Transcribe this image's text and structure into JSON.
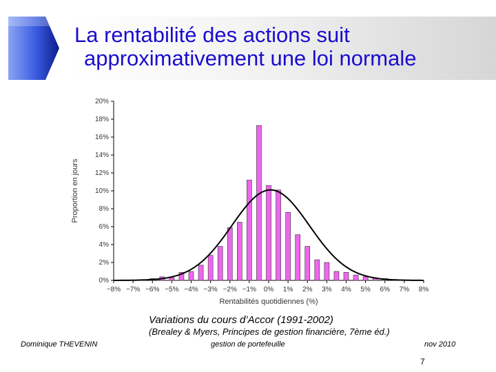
{
  "slide": {
    "title_line1": "La rentabilité des actions suit",
    "title_line2": "approximativement une loi normale",
    "caption": "Variations du cours d’Accor (1991-2002)",
    "source": "(Brealey & Myers, Principes de gestion financière, 7ème éd.)",
    "footer_author": "Dominique THEVENIN",
    "footer_center": "gestion de portefeuille",
    "footer_date": "nov 2010",
    "page_number": "7",
    "title_color": "#1a0dcc",
    "arrow_icon": "blue-chevron-arrow-icon"
  },
  "chart_data": {
    "type": "bar",
    "xlabel": "Rentabilités quotidiennes (%)",
    "ylabel": "Proportion en jours",
    "x_ticks": [
      "−8%",
      "−7%",
      "−6%",
      "−5%",
      "−4%",
      "−3%",
      "−2%",
      "−1%",
      "0%",
      "1%",
      "2%",
      "3%",
      "4%",
      "5%",
      "6%",
      "7%",
      "8%"
    ],
    "y_ticks": [
      "0%",
      "2%",
      "4%",
      "6%",
      "8%",
      "10%",
      "12%",
      "14%",
      "16%",
      "18%",
      "20%"
    ],
    "xlim": [
      -8,
      8
    ],
    "ylim": [
      0,
      20
    ],
    "bar_color": "#ee66ee",
    "bars": [
      {
        "x": -6.5,
        "y": 0.1
      },
      {
        "x": -6.0,
        "y": 0.2
      },
      {
        "x": -5.5,
        "y": 0.4
      },
      {
        "x": -5.0,
        "y": 0.3
      },
      {
        "x": -4.5,
        "y": 0.9
      },
      {
        "x": -4.0,
        "y": 1.0
      },
      {
        "x": -3.5,
        "y": 1.7
      },
      {
        "x": -3.0,
        "y": 2.8
      },
      {
        "x": -2.5,
        "y": 3.8
      },
      {
        "x": -2.0,
        "y": 5.9
      },
      {
        "x": -1.5,
        "y": 6.5
      },
      {
        "x": -1.0,
        "y": 11.2
      },
      {
        "x": -0.5,
        "y": 17.3
      },
      {
        "x": 0.0,
        "y": 10.6
      },
      {
        "x": 0.5,
        "y": 10.1
      },
      {
        "x": 1.0,
        "y": 7.6
      },
      {
        "x": 1.5,
        "y": 5.1
      },
      {
        "x": 2.0,
        "y": 3.8
      },
      {
        "x": 2.5,
        "y": 2.3
      },
      {
        "x": 3.0,
        "y": 2.0
      },
      {
        "x": 3.5,
        "y": 1.0
      },
      {
        "x": 4.0,
        "y": 0.9
      },
      {
        "x": 4.5,
        "y": 0.6
      },
      {
        "x": 5.0,
        "y": 0.4
      },
      {
        "x": 5.5,
        "y": 0.3
      },
      {
        "x": 6.0,
        "y": 0.2
      },
      {
        "x": 6.5,
        "y": 0.1
      }
    ],
    "normal_curve": {
      "mean": 0.1,
      "std": 2.0,
      "peak": 10.1
    }
  }
}
